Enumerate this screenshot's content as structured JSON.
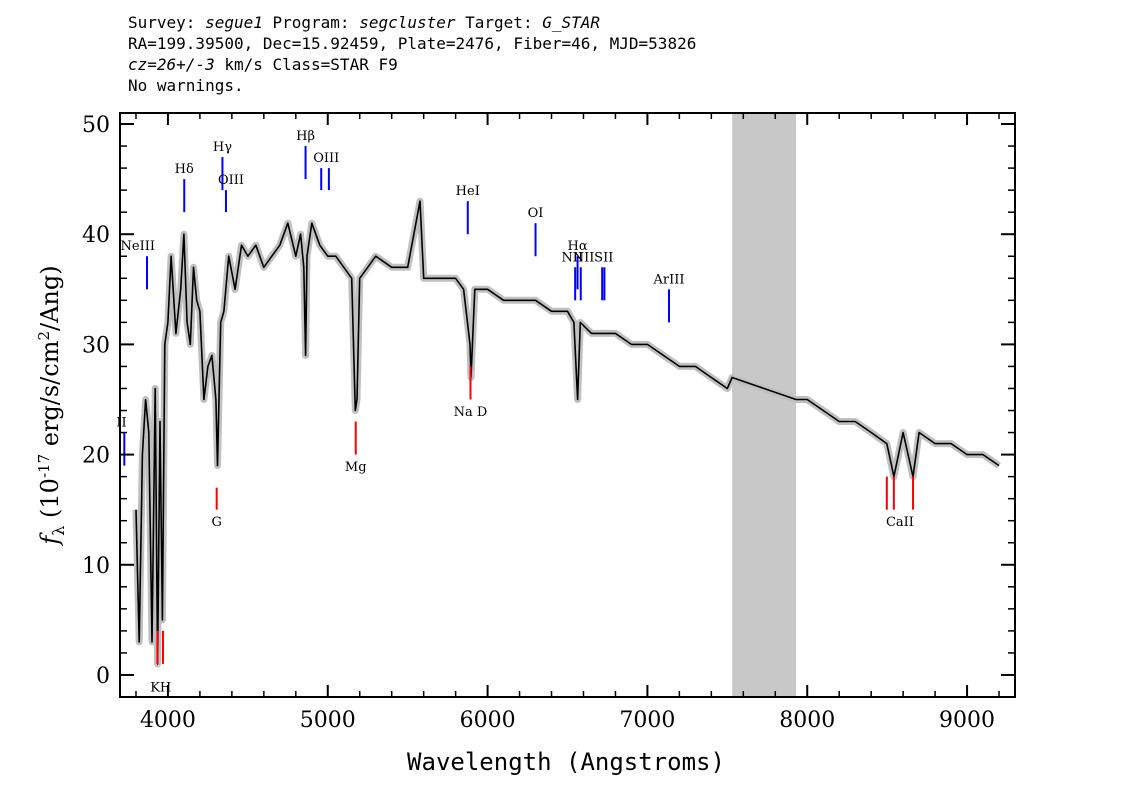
{
  "header": {
    "line1": {
      "survey_label": "Survey: ",
      "survey": "segue1",
      "program_label": " Program: ",
      "program": "segcluster",
      "target_label": " Target: ",
      "target": "G_STAR"
    },
    "line2": "RA=199.39500, Dec=15.92459, Plate=2476, Fiber=46, MJD=53826",
    "line3": {
      "cz": "cz=26+/-3",
      "rest": " km/s Class=STAR F9"
    },
    "line4": "No warnings."
  },
  "chart_data": {
    "type": "line",
    "xlabel": "Wavelength (Angstroms)",
    "ylabel": {
      "f": "f",
      "sub": "λ",
      "pre": " (10",
      "exp": "-17",
      "mid": " erg/s/cm",
      "exp2": "2",
      "post": "/Ang)"
    },
    "xlim": [
      3700,
      9300
    ],
    "ylim": [
      -2,
      51
    ],
    "xticks": [
      "4000",
      "5000",
      "6000",
      "7000",
      "8000",
      "9000"
    ],
    "xtick_values": [
      4000,
      5000,
      6000,
      7000,
      8000,
      9000
    ],
    "yticks": [
      "0",
      "10",
      "20",
      "30",
      "40",
      "50"
    ],
    "ytick_values": [
      0,
      10,
      20,
      30,
      40,
      50
    ],
    "masked_region": [
      7530,
      7930
    ],
    "series": [
      {
        "color": "#000000",
        "x": [
          3800,
          3820,
          3840,
          3860,
          3880,
          3900,
          3920,
          3935,
          3950,
          3965,
          3980,
          4000,
          4020,
          4050,
          4080,
          4100,
          4120,
          4140,
          4160,
          4180,
          4200,
          4225,
          4250,
          4275,
          4300,
          4310,
          4330,
          4350,
          4380,
          4420,
          4460,
          4500,
          4550,
          4600,
          4650,
          4700,
          4750,
          4800,
          4830,
          4850,
          4861,
          4870,
          4900,
          4950,
          5000,
          5050,
          5100,
          5150,
          5172,
          5183,
          5200,
          5250,
          5300,
          5400,
          5500,
          5577,
          5600,
          5700,
          5800,
          5850,
          5890,
          5896,
          5920,
          6000,
          6100,
          6200,
          6300,
          6400,
          6500,
          6540,
          6563,
          6580,
          6650,
          6700,
          6800,
          6900,
          7000,
          7100,
          7200,
          7300,
          7400,
          7500,
          7530,
          7930,
          8000,
          8100,
          8200,
          8300,
          8400,
          8498,
          8542,
          8600,
          8662,
          8700,
          8800,
          8900,
          9000,
          9100,
          9200
        ],
        "y": [
          15,
          3,
          20,
          25,
          22,
          3,
          26,
          1,
          23,
          5,
          30,
          32,
          38,
          31,
          35,
          40,
          32,
          30,
          37,
          34,
          33,
          25,
          28,
          29,
          25,
          19,
          32,
          33,
          38,
          35,
          39,
          38,
          39,
          37,
          38,
          39,
          41,
          38,
          40,
          37,
          29,
          38,
          41,
          39,
          38,
          38,
          37,
          36,
          24,
          25,
          36,
          37,
          38,
          37,
          37,
          43,
          36,
          36,
          36,
          35,
          30,
          27,
          35,
          35,
          34,
          34,
          34,
          33,
          33,
          32,
          25,
          32,
          31,
          31,
          31,
          30,
          30,
          29,
          28,
          28,
          27,
          26,
          27,
          25,
          25,
          24,
          23,
          23,
          22,
          21,
          18,
          22,
          18,
          22,
          21,
          21,
          20,
          20,
          19
        ]
      }
    ],
    "emission_lines": [
      {
        "label": "NeIII",
        "x": 3869
      },
      {
        "label": "Hδ",
        "x": 4102
      },
      {
        "label": "Hγ",
        "x": 4341
      },
      {
        "label": "OIII",
        "x": 4363
      },
      {
        "label": "Hβ",
        "x": 4861
      },
      {
        "label": "OIII",
        "x": 4959
      },
      {
        "label": "OIII",
        "x": 5007
      },
      {
        "label": "HeI",
        "x": 5876
      },
      {
        "label": "OI",
        "x": 6300
      },
      {
        "label": "NII",
        "x": 6548
      },
      {
        "label": "Hα",
        "x": 6563
      },
      {
        "label": "NII",
        "x": 6583
      },
      {
        "label": "SII",
        "x": 6717
      },
      {
        "label": "SII",
        "x": 6731
      },
      {
        "label": "ArIII",
        "x": 7135
      },
      {
        "label": "OII",
        "x": 3727
      }
    ],
    "absorption_lines": [
      {
        "label": "K",
        "x": 3934
      },
      {
        "label": "H",
        "x": 3969
      },
      {
        "label": "G",
        "x": 4305
      },
      {
        "label": "Mg",
        "x": 5175
      },
      {
        "label": "Na",
        "x": 5890
      },
      {
        "label": "D",
        "x": 5896
      },
      {
        "label": "CaII",
        "x": 8498
      },
      {
        "label": "CaII",
        "x": 8542
      },
      {
        "label": "CaII",
        "x": 8662
      }
    ],
    "line_label_texts": {
      "NeIII": "NeIII",
      "Hd": "Hδ",
      "Hg": "Hγ",
      "OIII_a": "OIII",
      "Hb": "Hβ",
      "OIII_b": "OIII",
      "HeI": "HeI",
      "OI": "OI",
      "NII_a": "NII",
      "Ha": "Hα",
      "NII_b": "NII",
      "SII": "SII",
      "ArIII": "ArIII",
      "OII": "II",
      "KH": "KH",
      "G": "G",
      "Mg": "Mg",
      "NaD": "Na  D",
      "CaII": "CaII"
    },
    "colors": {
      "spectrum": "#000000",
      "error": "#c0c0c0",
      "mask": "#c8c8c8",
      "emission": "#0000ff",
      "absorption": "#ff0000"
    }
  }
}
